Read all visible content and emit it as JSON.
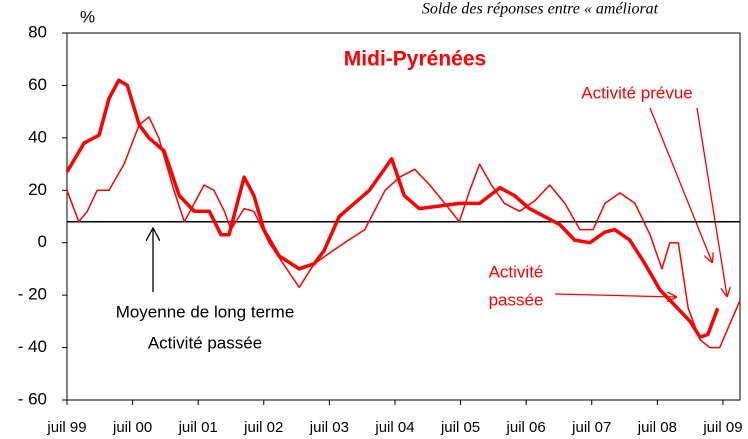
{
  "chart_data": {
    "type": "line",
    "title": "Midi-Pyrénées",
    "subtitle": "Solde des réponses entre « améliorat",
    "y_label": "%",
    "xlim": [
      1999.5,
      2009.76
    ],
    "xticks": [
      {
        "value": 1999.5,
        "label": "juil 99"
      },
      {
        "value": 2000.5,
        "label": "juil 00"
      },
      {
        "value": 2001.5,
        "label": "juil 01"
      },
      {
        "value": 2002.5,
        "label": "juil 02"
      },
      {
        "value": 2003.5,
        "label": "juil 03"
      },
      {
        "value": 2004.5,
        "label": "juil 04"
      },
      {
        "value": 2005.5,
        "label": "juil 05"
      },
      {
        "value": 2006.5,
        "label": "juil 06"
      },
      {
        "value": 2007.5,
        "label": "juil 07"
      },
      {
        "value": 2008.5,
        "label": "juil 08"
      },
      {
        "value": 2009.5,
        "label": "juil 09"
      }
    ],
    "ylim": [
      -60,
      80
    ],
    "yticks": [
      80,
      60,
      40,
      20,
      0,
      {
        "value": -20,
        "label": "- 20"
      },
      {
        "value": -40,
        "label": "- 40"
      },
      {
        "value": -60,
        "label": "- 60"
      }
    ],
    "long_term_mean": 8,
    "series": [
      {
        "name": "Activité passée",
        "color": "#ff0000",
        "width": 3.5,
        "x": [
          1999.5,
          1999.76,
          1999.99,
          2000.14,
          2000.29,
          2000.42,
          2000.6,
          2000.75,
          2000.98,
          2001.21,
          2001.44,
          2001.67,
          2001.85,
          2001.97,
          2002.2,
          2002.35,
          2002.5,
          2002.73,
          2003.04,
          2003.27,
          2003.42,
          2003.65,
          2003.88,
          2004.11,
          2004.45,
          2004.64,
          2004.87,
          2005.18,
          2005.48,
          2005.79,
          2006.1,
          2006.32,
          2006.55,
          2007.01,
          2007.24,
          2007.47,
          2007.7,
          2007.85,
          2008.08,
          2008.31,
          2008.54,
          2008.77,
          2009.0,
          2009.15,
          2009.27,
          2009.42
        ],
        "values": [
          27,
          38,
          41,
          55,
          62,
          60,
          45,
          40,
          35,
          18,
          12,
          12,
          3,
          3,
          25,
          18,
          5,
          -5,
          -10,
          -8,
          -3,
          10,
          15,
          20,
          32,
          18,
          13,
          14,
          15,
          15,
          21,
          18,
          13,
          7,
          1,
          0,
          4,
          5,
          1,
          -8,
          -18,
          -24,
          -30,
          -36,
          -35,
          -25
        ]
      },
      {
        "name": "Activité prévue",
        "color": "#ff0000",
        "width": 1.5,
        "x": [
          1999.5,
          1999.68,
          1999.81,
          1999.96,
          2000.14,
          2000.37,
          2000.6,
          2000.75,
          2000.9,
          2001.13,
          2001.29,
          2001.44,
          2001.59,
          2001.74,
          2001.9,
          2002.0,
          2002.2,
          2002.35,
          2002.58,
          2003.04,
          2003.27,
          2003.73,
          2004.04,
          2004.35,
          2004.57,
          2004.8,
          2005.03,
          2005.26,
          2005.48,
          2005.64,
          2005.79,
          2005.97,
          2006.17,
          2006.4,
          2006.63,
          2006.86,
          2007.09,
          2007.32,
          2007.52,
          2007.7,
          2007.93,
          2008.16,
          2008.39,
          2008.57,
          2008.69,
          2008.82,
          2008.97,
          2009.15,
          2009.3,
          2009.45,
          2009.76
        ],
        "values": [
          20,
          8,
          12,
          20,
          20,
          30,
          45,
          48,
          40,
          20,
          8,
          15,
          22,
          20,
          12,
          5,
          13,
          12,
          0,
          -17,
          -8,
          0,
          5,
          20,
          25,
          28,
          22,
          15,
          8,
          20,
          30,
          22,
          15,
          12,
          16,
          22,
          15,
          5,
          5,
          15,
          19,
          15,
          3,
          -10,
          0,
          0,
          -25,
          -37,
          -40,
          -40,
          -22
        ]
      }
    ],
    "annotations": [
      "Activité",
      "passée",
      "Moyenne de long terme",
      "Activité passée"
    ]
  }
}
